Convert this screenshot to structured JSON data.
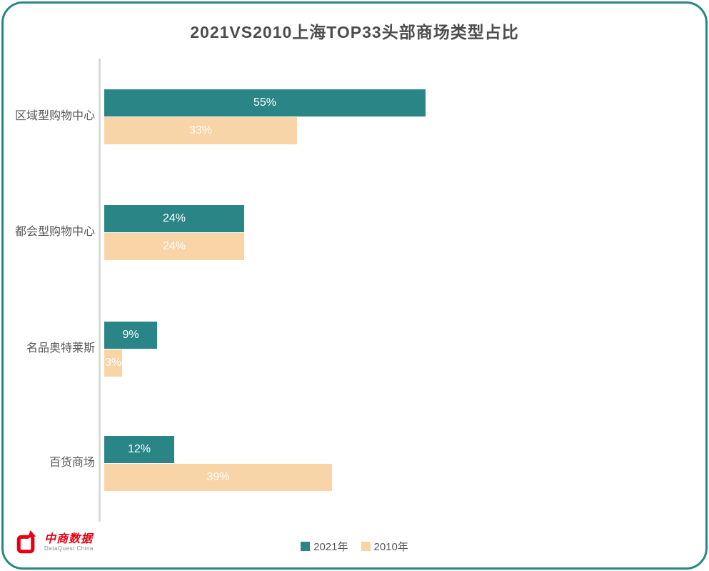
{
  "header": {
    "title": "2021VS2010上海TOP33头部商场类型占比"
  },
  "chart_data": {
    "type": "bar",
    "orientation": "horizontal",
    "title": "2021VS2010上海TOP33头部商场类型占比",
    "categories": [
      "区域型购物中心",
      "都会型购物中心",
      "名品奥特莱斯",
      "百货商场"
    ],
    "series": [
      {
        "name": "2021年",
        "color": "#2a8586",
        "values": [
          55,
          24,
          9,
          12
        ]
      },
      {
        "name": "2010年",
        "color": "#f9d4a6",
        "values": [
          33,
          24,
          3,
          39
        ]
      }
    ],
    "value_suffix": "%",
    "data_labels": "inside-center, white",
    "legend_position": "bottom-center",
    "axis": {
      "gridlines": false,
      "tick_labels": false,
      "baseline_color": "#d9d9d9"
    }
  },
  "colors": {
    "frame_border": "#2a8586",
    "title_text": "#4d4d4d",
    "category_text": "#595959",
    "background": "#ffffff"
  },
  "brand": {
    "name": "中商数据",
    "subtitle": "DataQuest China",
    "color": "#e60012"
  }
}
